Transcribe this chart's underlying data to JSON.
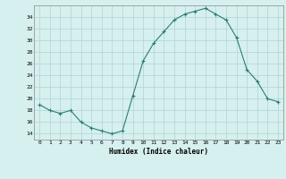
{
  "x": [
    0,
    1,
    2,
    3,
    4,
    5,
    6,
    7,
    8,
    9,
    10,
    11,
    12,
    13,
    14,
    15,
    16,
    17,
    18,
    19,
    20,
    21,
    22,
    23
  ],
  "y": [
    19,
    18,
    17.5,
    18,
    16,
    15,
    14.5,
    14,
    14.5,
    20.5,
    26.5,
    29.5,
    31.5,
    33.5,
    34.5,
    35,
    35.5,
    34.5,
    33.5,
    30.5,
    25,
    23,
    20,
    19.5
  ],
  "line_color": "#2e7d6e",
  "marker": "+",
  "marker_color": "#2e7d6e",
  "bg_color": "#d6f0ef",
  "grid_color": "#aed4d2",
  "xlabel": "Humidex (Indice chaleur)",
  "xlim": [
    -0.5,
    23.5
  ],
  "ylim": [
    13,
    36
  ],
  "yticks": [
    14,
    16,
    18,
    20,
    22,
    24,
    26,
    28,
    30,
    32,
    34
  ],
  "xticks": [
    0,
    1,
    2,
    3,
    4,
    5,
    6,
    7,
    8,
    9,
    10,
    11,
    12,
    13,
    14,
    15,
    16,
    17,
    18,
    19,
    20,
    21,
    22,
    23
  ]
}
